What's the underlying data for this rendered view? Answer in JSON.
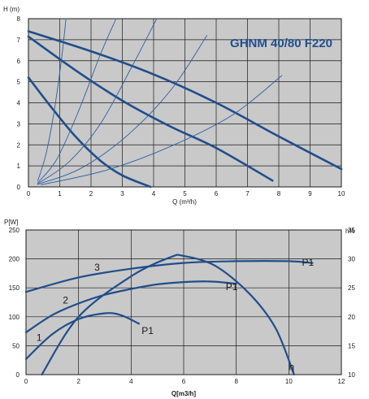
{
  "colors": {
    "curve": "#1f4e8c",
    "thin": "#2e5fa3",
    "plot_bg": "#c9c9c9",
    "title": "#1f4e8c"
  },
  "chart_data": [
    {
      "type": "line",
      "title": "GHNM 40/80 F220",
      "xlabel": "Q (m³/h)",
      "ylabel": "H (m)",
      "xlim": [
        0,
        10
      ],
      "ylim": [
        0,
        8
      ],
      "xticks": [
        "0",
        "1",
        "2",
        "3",
        "4",
        "5",
        "6",
        "7",
        "8",
        "9",
        "10"
      ],
      "yticks": [
        "0",
        "1",
        "2",
        "3",
        "4",
        "5",
        "6",
        "7",
        "8"
      ],
      "grid": true,
      "series": [
        {
          "style": "thick",
          "points": [
            [
              0,
              7.4
            ],
            [
              2,
              6.45
            ],
            [
              4,
              5.35
            ],
            [
              6,
              4.0
            ],
            [
              8,
              2.4
            ],
            [
              10,
              0.85
            ]
          ]
        },
        {
          "style": "thick",
          "points": [
            [
              0,
              7.15
            ],
            [
              1.5,
              5.55
            ],
            [
              3,
              4.1
            ],
            [
              4.5,
              2.9
            ],
            [
              6,
              1.85
            ],
            [
              7.8,
              0.3
            ]
          ]
        },
        {
          "style": "thick",
          "points": [
            [
              0,
              5.2
            ],
            [
              0.7,
              3.85
            ],
            [
              1.5,
              2.4
            ],
            [
              2.3,
              1.25
            ],
            [
              3,
              0.55
            ],
            [
              3.9,
              0.0
            ]
          ]
        },
        {
          "style": "thin",
          "points": [
            [
              0.3,
              0.3
            ],
            [
              0.55,
              1.5
            ],
            [
              0.8,
              3.4
            ],
            [
              1.05,
              6.0
            ],
            [
              1.2,
              8.0
            ]
          ]
        },
        {
          "style": "thin",
          "points": [
            [
              0.3,
              0.2
            ],
            [
              0.9,
              1.3
            ],
            [
              1.6,
              3.6
            ],
            [
              2.3,
              6.3
            ],
            [
              2.8,
              8.0
            ]
          ]
        },
        {
          "style": "thin",
          "points": [
            [
              0.3,
              0.15
            ],
            [
              1.3,
              1.2
            ],
            [
              2.3,
              3.0
            ],
            [
              3.3,
              5.7
            ],
            [
              4.1,
              8.0
            ]
          ]
        },
        {
          "style": "thin",
          "points": [
            [
              0.3,
              0.12
            ],
            [
              1.7,
              0.9
            ],
            [
              3.2,
              2.5
            ],
            [
              4.6,
              4.7
            ],
            [
              5.7,
              7.2
            ]
          ]
        },
        {
          "style": "thin",
          "points": [
            [
              0.4,
              0.1
            ],
            [
              2.5,
              0.8
            ],
            [
              4.5,
              1.9
            ],
            [
              6.5,
              3.4
            ],
            [
              8.1,
              5.3
            ]
          ]
        }
      ]
    },
    {
      "type": "line",
      "xlabel": "Q[m3/h]",
      "ylabel": "P[W]",
      "y2label": "h%",
      "xlim": [
        0,
        12
      ],
      "ylim": [
        0,
        250
      ],
      "y2lim": [
        10,
        35
      ],
      "xticks": [
        "0",
        "2",
        "4",
        "6",
        "8",
        "10",
        "12"
      ],
      "yticks": [
        "0",
        "50",
        "100",
        "150",
        "200",
        "250"
      ],
      "y2ticks": [
        "10",
        "15",
        "20",
        "25",
        "30",
        "35"
      ],
      "grid": true,
      "labels": [
        {
          "text": "3",
          "x": 2.6,
          "y": 180
        },
        {
          "text": "2",
          "x": 1.4,
          "y": 123
        },
        {
          "text": "1",
          "x": 0.4,
          "y": 58
        },
        {
          "text": "P1",
          "x": 10.5,
          "y": 188
        },
        {
          "text": "P1",
          "x": 7.6,
          "y": 146
        },
        {
          "text": "P1",
          "x": 4.4,
          "y": 70
        },
        {
          "text": "η",
          "x": 10.0,
          "y": 8
        }
      ],
      "series": [
        {
          "name": "3",
          "points": [
            [
              0,
              143
            ],
            [
              2,
              168
            ],
            [
              4,
              183
            ],
            [
              6,
              193
            ],
            [
              8,
              196
            ],
            [
              10,
              196
            ],
            [
              10.9,
              193
            ]
          ]
        },
        {
          "name": "2",
          "points": [
            [
              0,
              73
            ],
            [
              1,
              103
            ],
            [
              2,
              123
            ],
            [
              3,
              138
            ],
            [
              4,
              148
            ],
            [
              5,
              156
            ],
            [
              6,
              160
            ],
            [
              7,
              161
            ],
            [
              8,
              157
            ]
          ]
        },
        {
          "name": "1",
          "points": [
            [
              0,
              27
            ],
            [
              1,
              70
            ],
            [
              2,
              96
            ],
            [
              3,
              106
            ],
            [
              3.6,
              103
            ],
            [
              4.3,
              88
            ]
          ]
        },
        {
          "name": "η",
          "axis": "right",
          "points": [
            [
              0.6,
              10
            ],
            [
              2,
              20
            ],
            [
              4,
              27
            ],
            [
              5.5,
              30.3
            ],
            [
              6,
              30.5
            ],
            [
              7.2,
              28.8
            ],
            [
              8.5,
              24
            ],
            [
              9.5,
              18
            ],
            [
              10.2,
              10
            ]
          ]
        }
      ]
    }
  ]
}
